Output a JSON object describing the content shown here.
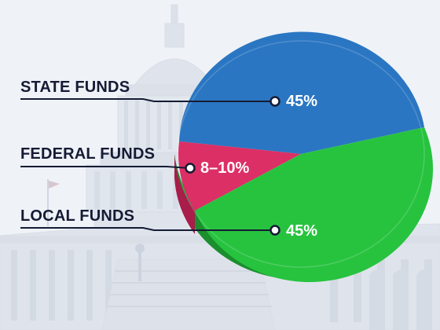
{
  "chart_data": {
    "type": "pie",
    "slices": [
      {
        "name": "STATE FUNDS",
        "value_label": "45%",
        "value": 45,
        "color": "#2a76c2"
      },
      {
        "name": "FEDERAL FUNDS",
        "value_label": "8–10%",
        "value": 10,
        "color": "#dc2f65"
      },
      {
        "name": "LOCAL FUNDS",
        "value_label": "45%",
        "value": 45,
        "color": "#27c33f"
      }
    ],
    "title": "",
    "style": "3d",
    "background": "capitol-building"
  },
  "colors": {
    "label_text": "#151b34",
    "leader_line": "#151b34",
    "state_side": "#1d5a99",
    "federal_side": "#a81d4a",
    "local_side": "#1b8e2e"
  }
}
